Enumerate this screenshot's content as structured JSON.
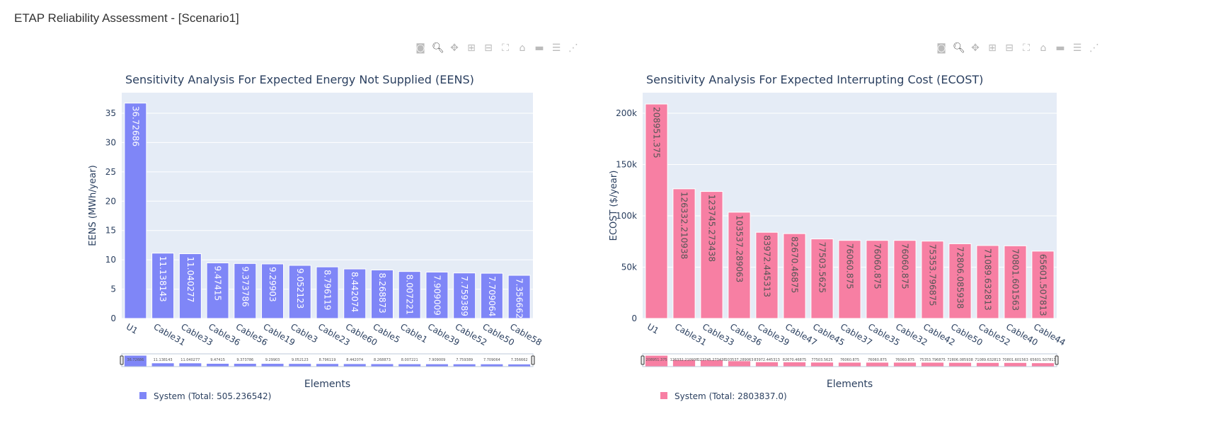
{
  "app_title": "ETAP Reliability Assessment - [Scenario1]",
  "modebar_icons": [
    "camera-icon",
    "zoom-icon",
    "pan-icon",
    "zoom-in-icon",
    "zoom-out-icon",
    "autoscale-icon",
    "reset-axes-icon",
    "hover-closest-icon",
    "hover-compare-icon",
    "spike-lines-icon"
  ],
  "chart_data": [
    {
      "type": "bar",
      "title": "Sensitivity Analysis For Expected Energy Not Supplied (EENS)",
      "xlabel": "Elements",
      "ylabel": "EENS (MWh/year)",
      "ylim": [
        0,
        38.5
      ],
      "yticks": [
        0,
        5,
        10,
        15,
        20,
        25,
        30,
        35
      ],
      "ytick_labels": [
        "0",
        "5",
        "10",
        "15",
        "20",
        "25",
        "30",
        "35"
      ],
      "grid": true,
      "color": "#7f86f7",
      "label_color": "#ffffff",
      "legend_position": "bottom-left",
      "categories": [
        "U1",
        "Cable31",
        "Cable33",
        "Cable36",
        "Cable56",
        "Cable19",
        "Cable3",
        "Cable23",
        "Cable60",
        "Cable5",
        "Cable1",
        "Cable39",
        "Cable52",
        "Cable50",
        "Cable58"
      ],
      "series": [
        {
          "name": "System (Total: 505.236542)",
          "values": [
            36.72686,
            11.138143,
            11.040277,
            9.47415,
            9.373786,
            9.29903,
            9.052123,
            8.796119,
            8.442074,
            8.268873,
            8.007221,
            7.909009,
            7.759389,
            7.709064,
            7.356662
          ]
        }
      ],
      "value_labels": [
        "36.72686",
        "11.138143",
        "11.040277",
        "9.47415",
        "9.373786",
        "9.29903",
        "9.052123",
        "8.796119",
        "8.442074",
        "8.268873",
        "8.007221",
        "7.909009",
        "7.759389",
        "7.709064",
        "7.356662"
      ]
    },
    {
      "type": "bar",
      "title": "Sensitivity Analysis For Expected Interrupting Cost (ECOST)",
      "xlabel": "Elements",
      "ylabel": "ECOST ($/year)",
      "ylim": [
        0,
        220000
      ],
      "yticks": [
        0,
        50000,
        100000,
        150000,
        200000
      ],
      "ytick_labels": [
        "0",
        "50k",
        "100k",
        "150k",
        "200k"
      ],
      "grid": true,
      "color": "#f77fa3",
      "label_color": "#555555",
      "legend_position": "bottom-left",
      "categories": [
        "U1",
        "Cable31",
        "Cable33",
        "Cable36",
        "Cable39",
        "Cable47",
        "Cable45",
        "Cable37",
        "Cable35",
        "Cable32",
        "Cable42",
        "Cable50",
        "Cable52",
        "Cable40",
        "Cable44"
      ],
      "series": [
        {
          "name": "System (Total: 2803837.0)",
          "values": [
            208951.375,
            126332.210938,
            123745.273438,
            103537.289063,
            83972.445313,
            82670.46875,
            77503.5625,
            76060.875,
            76060.875,
            76060.875,
            75353.796875,
            72806.085938,
            71089.632813,
            70801.601563,
            65601.507813
          ]
        }
      ],
      "value_labels": [
        "208951.375",
        "126332.210938",
        "123745.273438",
        "103537.289063",
        "83972.445313",
        "82670.46875",
        "77503.5625",
        "76060.875",
        "76060.875",
        "76060.875",
        "75353.796875",
        "72806.085938",
        "71089.632813",
        "70801.601563",
        "65601.507813"
      ]
    }
  ]
}
